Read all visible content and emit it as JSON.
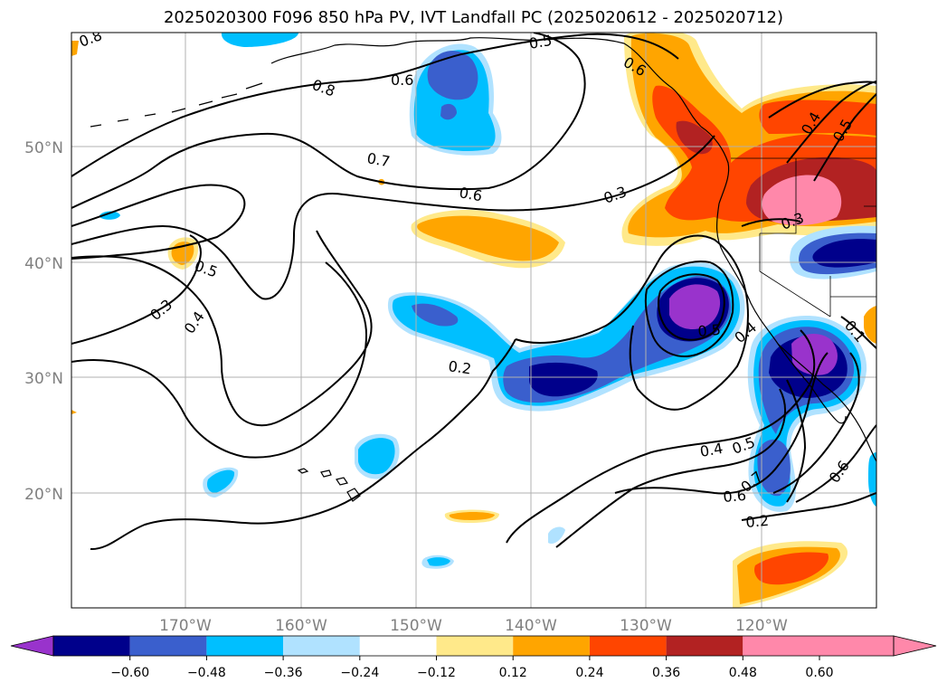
{
  "title": "2025020300 F096 850 hPa PV, IVT Landfall PC (2025020612 - 2025020712)",
  "map": {
    "lat_labels": [
      "50°N",
      "40°N",
      "30°N",
      "20°N"
    ],
    "lon_labels": [
      "170°W",
      "160°W",
      "150°W",
      "140°W",
      "130°W",
      "120°W"
    ],
    "contour_labels": [
      "0.8",
      "0.6",
      "0.5",
      "0.6",
      "0.8",
      "0.7",
      "0.6",
      "0.3",
      "0.4",
      "0.5",
      "0.5",
      "0.3",
      "0.4",
      "0.2",
      "0.5",
      "0.4",
      "0.4",
      "0.5",
      "0.6",
      "0.7",
      "0.2",
      "0.6",
      "0.3",
      "0.1"
    ]
  },
  "colorbar": {
    "ticks": [
      "−0.60",
      "−0.48",
      "−0.36",
      "−0.24",
      "−0.12",
      "0.12",
      "0.24",
      "0.36",
      "0.48",
      "0.60"
    ],
    "colors": [
      "#9933cc",
      "#00008b",
      "#3a5fcd",
      "#00bfff",
      "#b0e2ff",
      "#ffffff",
      "#ffe98a",
      "#ffa500",
      "#ff4500",
      "#b22222",
      "#ff88aa",
      "#ff88aa"
    ]
  }
}
